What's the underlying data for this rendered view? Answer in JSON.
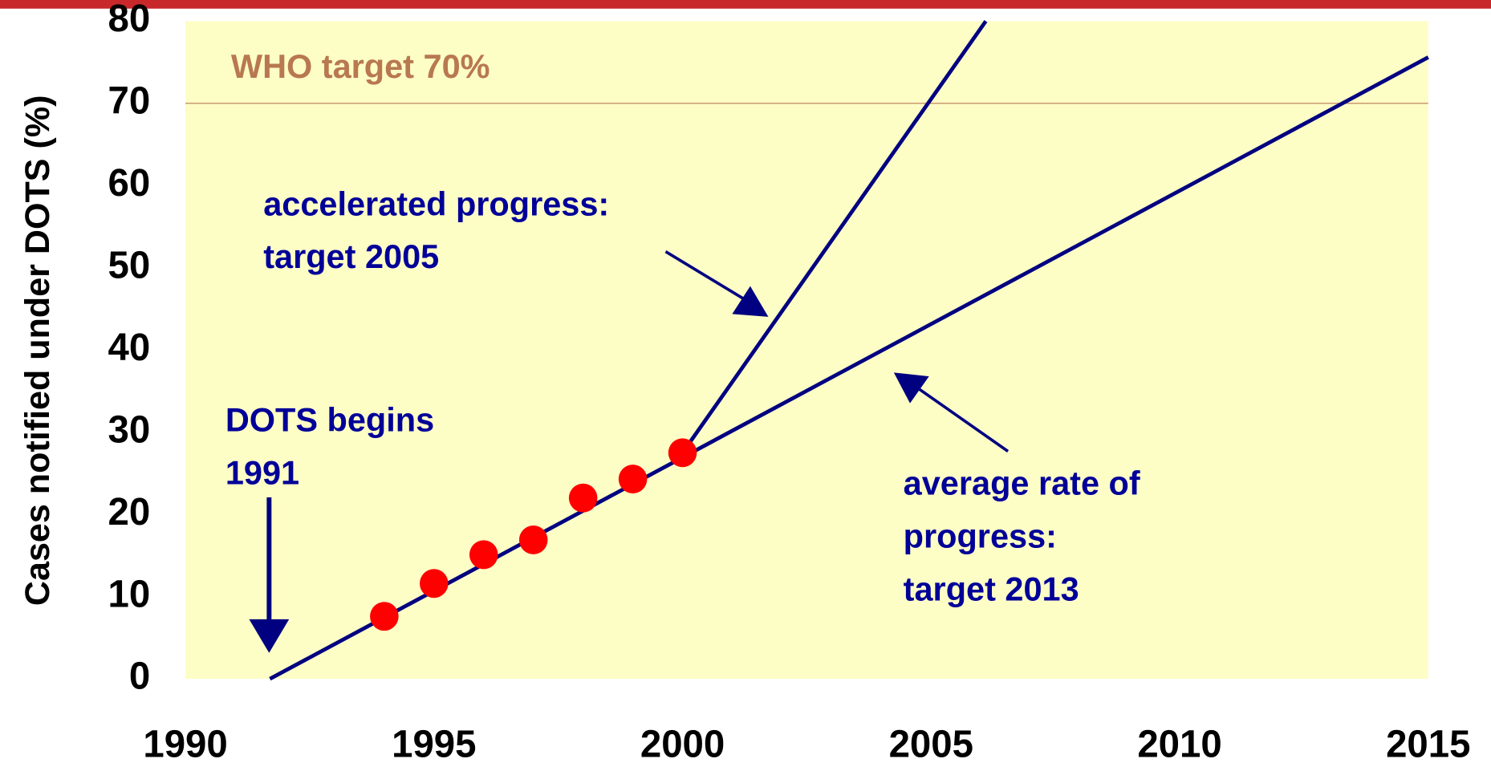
{
  "chart_data": {
    "type": "line",
    "y_label": "Cases notified under DOTS  (%)",
    "xlim": [
      1990,
      2015
    ],
    "ylim": [
      0,
      80
    ],
    "xticks": [
      1990,
      1995,
      2000,
      2005,
      2010,
      2015
    ],
    "yticks": [
      0,
      10,
      20,
      30,
      40,
      50,
      60,
      70,
      80
    ],
    "target": {
      "label": "WHO target 70%",
      "value": 70,
      "color": "#b87850"
    },
    "series": [
      {
        "color": "#000080",
        "style": "line",
        "x": [
          1991.7,
          2015
        ],
        "values": [
          0,
          75.6
        ]
      },
      {
        "color": "#000080",
        "style": "line",
        "x": [
          2000,
          2006.1
        ],
        "values": [
          27.5,
          80
        ]
      },
      {
        "color": "#ff0000",
        "style": "markers",
        "x": [
          1994,
          1995,
          1996,
          1997,
          1998,
          1999,
          2000
        ],
        "values": [
          7.6,
          11.6,
          15.1,
          16.9,
          22,
          24.3,
          27.5
        ]
      }
    ],
    "annotations": [
      {
        "lines": [
          "accelerated progress:",
          "target 2005"
        ]
      },
      {
        "lines": [
          "DOTS begins",
          "1991"
        ]
      },
      {
        "lines": [
          "average rate of",
          "progress:",
          "target 2013"
        ]
      }
    ]
  }
}
